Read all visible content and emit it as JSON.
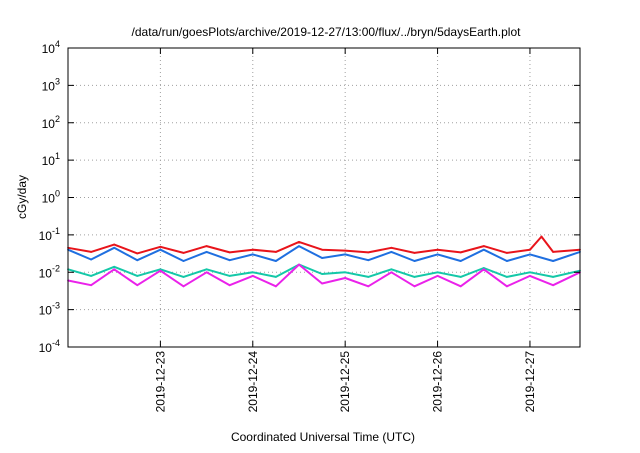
{
  "chart_data": {
    "type": "line",
    "title": "/data/run/goesPlots/archive/2019-12-27/13:00/flux/../bryn/5daysEarth.plot",
    "xlabel": "Coordinated Universal Time (UTC)",
    "ylabel": "cGy/day",
    "yscale": "log",
    "ylim": [
      0.0001,
      10000
    ],
    "xlim": [
      "2019-12-22 00:00",
      "2019-12-27 13:00"
    ],
    "grid": true,
    "y_ticks": [
      {
        "value": 0.0001,
        "base": "10",
        "exp": "-4"
      },
      {
        "value": 0.001,
        "base": "10",
        "exp": "-3"
      },
      {
        "value": 0.01,
        "base": "10",
        "exp": "-2"
      },
      {
        "value": 0.1,
        "base": "10",
        "exp": "-1"
      },
      {
        "value": 1,
        "base": "10",
        "exp": "0"
      },
      {
        "value": 10,
        "base": "10",
        "exp": "1"
      },
      {
        "value": 100,
        "base": "10",
        "exp": "2"
      },
      {
        "value": 1000,
        "base": "10",
        "exp": "3"
      },
      {
        "value": 10000,
        "base": "10",
        "exp": "4"
      }
    ],
    "x_ticks": [
      "2019-12-23",
      "2019-12-24",
      "2019-12-25",
      "2019-12-26",
      "2019-12-27"
    ],
    "series": [
      {
        "color": "#e8141b",
        "values": [
          [
            "2019-12-22 00:00",
            0.045
          ],
          [
            "2019-12-22 06:00",
            0.035
          ],
          [
            "2019-12-22 12:00",
            0.055
          ],
          [
            "2019-12-22 18:00",
            0.032
          ],
          [
            "2019-12-23 00:00",
            0.048
          ],
          [
            "2019-12-23 06:00",
            0.033
          ],
          [
            "2019-12-23 12:00",
            0.05
          ],
          [
            "2019-12-23 18:00",
            0.034
          ],
          [
            "2019-12-24 00:00",
            0.04
          ],
          [
            "2019-12-24 06:00",
            0.035
          ],
          [
            "2019-12-24 12:00",
            0.065
          ],
          [
            "2019-12-24 18:00",
            0.04
          ],
          [
            "2019-12-25 00:00",
            0.038
          ],
          [
            "2019-12-25 06:00",
            0.034
          ],
          [
            "2019-12-25 12:00",
            0.045
          ],
          [
            "2019-12-25 18:00",
            0.033
          ],
          [
            "2019-12-26 00:00",
            0.04
          ],
          [
            "2019-12-26 06:00",
            0.034
          ],
          [
            "2019-12-26 12:00",
            0.05
          ],
          [
            "2019-12-26 18:00",
            0.033
          ],
          [
            "2019-12-27 00:00",
            0.04
          ],
          [
            "2019-12-27 03:00",
            0.09
          ],
          [
            "2019-12-27 06:00",
            0.035
          ],
          [
            "2019-12-27 13:00",
            0.04
          ]
        ]
      },
      {
        "color": "#1f6fe0",
        "values": [
          [
            "2019-12-22 00:00",
            0.04
          ],
          [
            "2019-12-22 06:00",
            0.022
          ],
          [
            "2019-12-22 12:00",
            0.045
          ],
          [
            "2019-12-22 18:00",
            0.021
          ],
          [
            "2019-12-23 00:00",
            0.04
          ],
          [
            "2019-12-23 06:00",
            0.02
          ],
          [
            "2019-12-23 12:00",
            0.035
          ],
          [
            "2019-12-23 18:00",
            0.021
          ],
          [
            "2019-12-24 00:00",
            0.03
          ],
          [
            "2019-12-24 06:00",
            0.02
          ],
          [
            "2019-12-24 12:00",
            0.05
          ],
          [
            "2019-12-24 18:00",
            0.024
          ],
          [
            "2019-12-25 00:00",
            0.03
          ],
          [
            "2019-12-25 06:00",
            0.021
          ],
          [
            "2019-12-25 12:00",
            0.035
          ],
          [
            "2019-12-25 18:00",
            0.02
          ],
          [
            "2019-12-26 00:00",
            0.03
          ],
          [
            "2019-12-26 06:00",
            0.02
          ],
          [
            "2019-12-26 12:00",
            0.04
          ],
          [
            "2019-12-26 18:00",
            0.02
          ],
          [
            "2019-12-27 00:00",
            0.03
          ],
          [
            "2019-12-27 06:00",
            0.02
          ],
          [
            "2019-12-27 13:00",
            0.035
          ]
        ]
      },
      {
        "color": "#14c8a8",
        "values": [
          [
            "2019-12-22 00:00",
            0.012
          ],
          [
            "2019-12-22 06:00",
            0.008
          ],
          [
            "2019-12-22 12:00",
            0.014
          ],
          [
            "2019-12-22 18:00",
            0.008
          ],
          [
            "2019-12-23 00:00",
            0.012
          ],
          [
            "2019-12-23 06:00",
            0.0075
          ],
          [
            "2019-12-23 12:00",
            0.012
          ],
          [
            "2019-12-23 18:00",
            0.008
          ],
          [
            "2019-12-24 00:00",
            0.01
          ],
          [
            "2019-12-24 06:00",
            0.0075
          ],
          [
            "2019-12-24 12:00",
            0.016
          ],
          [
            "2019-12-24 18:00",
            0.009
          ],
          [
            "2019-12-25 00:00",
            0.01
          ],
          [
            "2019-12-25 06:00",
            0.0075
          ],
          [
            "2019-12-25 12:00",
            0.012
          ],
          [
            "2019-12-25 18:00",
            0.0075
          ],
          [
            "2019-12-26 00:00",
            0.01
          ],
          [
            "2019-12-26 06:00",
            0.0075
          ],
          [
            "2019-12-26 12:00",
            0.013
          ],
          [
            "2019-12-26 18:00",
            0.0075
          ],
          [
            "2019-12-27 00:00",
            0.01
          ],
          [
            "2019-12-27 06:00",
            0.0075
          ],
          [
            "2019-12-27 13:00",
            0.011
          ]
        ]
      },
      {
        "color": "#ea22ea",
        "values": [
          [
            "2019-12-22 00:00",
            0.006
          ],
          [
            "2019-12-22 06:00",
            0.0045
          ],
          [
            "2019-12-22 12:00",
            0.012
          ],
          [
            "2019-12-22 18:00",
            0.0045
          ],
          [
            "2019-12-23 00:00",
            0.011
          ],
          [
            "2019-12-23 06:00",
            0.0042
          ],
          [
            "2019-12-23 12:00",
            0.01
          ],
          [
            "2019-12-23 18:00",
            0.0045
          ],
          [
            "2019-12-24 00:00",
            0.008
          ],
          [
            "2019-12-24 06:00",
            0.0042
          ],
          [
            "2019-12-24 12:00",
            0.016
          ],
          [
            "2019-12-24 18:00",
            0.005
          ],
          [
            "2019-12-25 00:00",
            0.007
          ],
          [
            "2019-12-25 06:00",
            0.0042
          ],
          [
            "2019-12-25 12:00",
            0.01
          ],
          [
            "2019-12-25 18:00",
            0.0042
          ],
          [
            "2019-12-26 00:00",
            0.008
          ],
          [
            "2019-12-26 06:00",
            0.0042
          ],
          [
            "2019-12-26 12:00",
            0.012
          ],
          [
            "2019-12-26 18:00",
            0.0042
          ],
          [
            "2019-12-27 00:00",
            0.008
          ],
          [
            "2019-12-27 06:00",
            0.0045
          ],
          [
            "2019-12-27 13:00",
            0.01
          ]
        ]
      }
    ]
  }
}
